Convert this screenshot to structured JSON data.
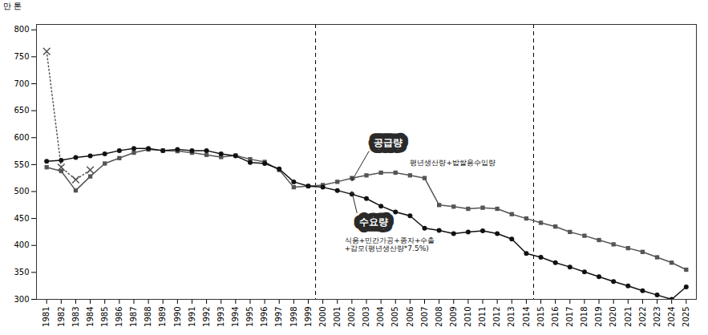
{
  "chart_data": {
    "type": "line",
    "ylabel": "만 톤",
    "x": [
      1981,
      1982,
      1983,
      1984,
      1985,
      1986,
      1987,
      1988,
      1989,
      1990,
      1991,
      1992,
      1993,
      1994,
      1995,
      1996,
      1997,
      1998,
      1999,
      2000,
      2001,
      2002,
      2003,
      2004,
      2005,
      2006,
      2007,
      2008,
      2009,
      2010,
      2011,
      2012,
      2013,
      2014,
      2015,
      2016,
      2017,
      2018,
      2019,
      2020,
      2021,
      2022,
      2023,
      2024,
      2025
    ],
    "series": [
      {
        "color": "#555555",
        "marker": "x",
        "line_style": "dotted",
        "values": [
          760,
          545,
          522,
          540,
          null,
          null,
          null,
          null,
          null,
          null,
          null,
          null,
          null,
          null,
          null,
          null,
          null,
          null,
          null,
          null,
          null,
          null,
          null,
          null,
          null,
          null,
          null,
          null,
          null,
          null,
          null,
          null,
          null,
          null,
          null,
          null,
          null,
          null,
          null,
          null,
          null,
          null,
          null,
          null,
          null
        ]
      },
      {
        "name": "공급량",
        "color": "#555555",
        "marker": "square",
        "line_style": "solid",
        "values": [
          545,
          538,
          502,
          528,
          552,
          562,
          572,
          578,
          576,
          575,
          572,
          568,
          564,
          567,
          560,
          555,
          540,
          508,
          510,
          512,
          518,
          525,
          530,
          535,
          535,
          530,
          525,
          475,
          472,
          468,
          470,
          468,
          458,
          450,
          442,
          435,
          425,
          418,
          410,
          402,
          395,
          388,
          378,
          368,
          355
        ]
      },
      {
        "name": "수요량",
        "color": "#111111",
        "marker": "circle",
        "line_style": "solid",
        "values": [
          556,
          558,
          563,
          566,
          570,
          576,
          580,
          580,
          576,
          578,
          576,
          576,
          570,
          566,
          554,
          552,
          542,
          518,
          510,
          508,
          502,
          495,
          487,
          473,
          462,
          455,
          432,
          428,
          422,
          425,
          427,
          422,
          412,
          385,
          378,
          368,
          360,
          351,
          342,
          333,
          325,
          316,
          308,
          300,
          323
        ]
      }
    ],
    "xlim": [
      1980.3,
      2025.7
    ],
    "xticks": [
      1981,
      1982,
      1983,
      1984,
      1985,
      1986,
      1987,
      1988,
      1989,
      1990,
      1991,
      1992,
      1993,
      1994,
      1995,
      1996,
      1997,
      1998,
      1999,
      2000,
      2001,
      2002,
      2003,
      2004,
      2005,
      2006,
      2007,
      2008,
      2009,
      2010,
      2011,
      2012,
      2013,
      2014,
      2015,
      2016,
      2017,
      2018,
      2019,
      2020,
      2021,
      2022,
      2023,
      2024,
      2025
    ],
    "ylim": [
      300,
      810
    ],
    "yticks": [
      300,
      350,
      400,
      450,
      500,
      550,
      600,
      650,
      700,
      750,
      800
    ],
    "vlines": [
      1999.5,
      2014.5
    ],
    "grid": false,
    "annotations": [
      {
        "text": "공급량",
        "x": 2003.5,
        "y": 590,
        "arrow_to": [
          2002,
          520
        ]
      },
      {
        "text": "평년생산량+밥쌀용수입량",
        "x": 2006,
        "y": 558
      },
      {
        "text": "수요량",
        "x": 2002.5,
        "y": 443,
        "arrow_to": [
          2002,
          500
        ]
      },
      {
        "text": "식용+민간가공+종자+수출",
        "x": 2001.5,
        "y": 415
      },
      {
        "text": "+감모(평년생산량*7.5%)",
        "x": 2001.5,
        "y": 400
      }
    ]
  }
}
